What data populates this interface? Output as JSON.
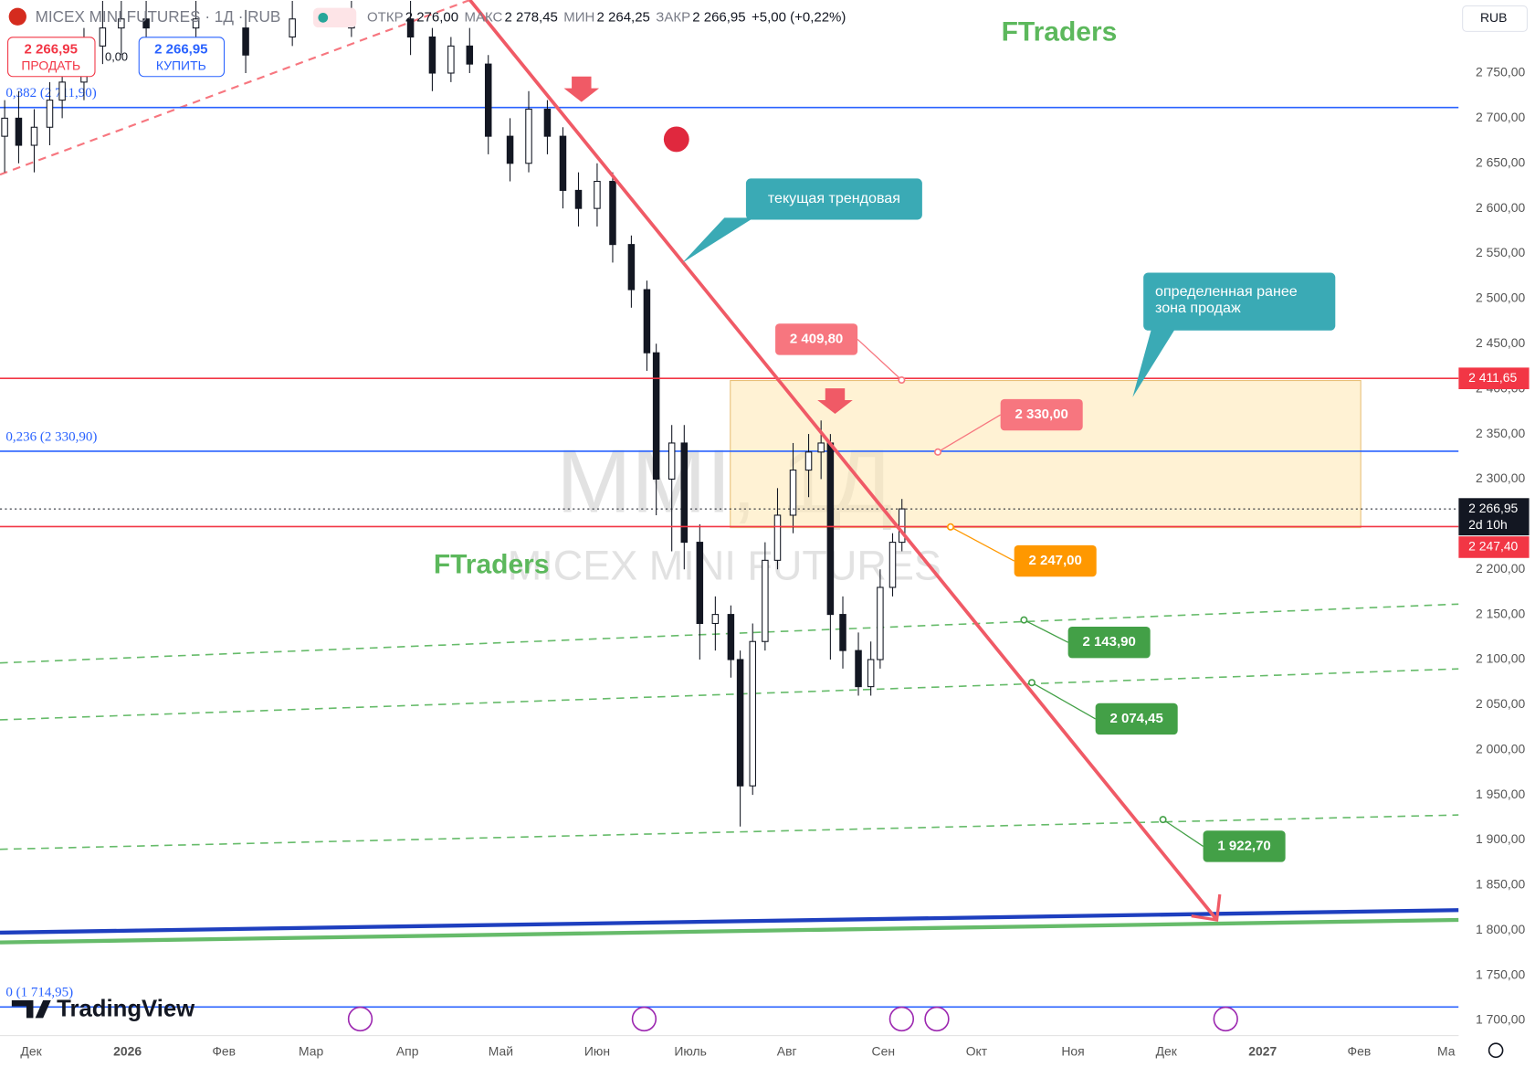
{
  "header": {
    "symbol": "MICEX MINI FUTURES · 1Д · RUB",
    "ohlc": [
      {
        "label": "ОТКР",
        "value": "2 276,00"
      },
      {
        "label": "МАКС",
        "value": "2 278,45"
      },
      {
        "label": "МИН",
        "value": "2 264,25"
      },
      {
        "label": "ЗАКР",
        "value": "2 266,95"
      }
    ],
    "change": "+5,00 (+0,22%)",
    "sell_price": "2 266,95",
    "sell": "ПРОДАТЬ",
    "spread": "0,00",
    "buy_price": "2 266,95",
    "buy": "КУПИТЬ",
    "currency": "RUB",
    "brand": "TradingView"
  },
  "chart_data": {
    "type": "candlestick",
    "watermark": "MMI, 1Д",
    "watermark_sub": "MICEX MINI FUTURES",
    "annotations": [
      "FTraders",
      "FTraders",
      "текущая трендовая",
      "определенная ранее\nзона продаж"
    ],
    "ylim": [
      1668,
      2831
    ],
    "yticks": [
      {
        "value": 1700,
        "label": "1 700,00"
      },
      {
        "value": 1750,
        "label": "1 750,00"
      },
      {
        "value": 1800,
        "label": "1 800,00"
      },
      {
        "value": 1850,
        "label": "1 850,00"
      },
      {
        "value": 1900,
        "label": "1 900,00"
      },
      {
        "value": 1950,
        "label": "1 950,00"
      },
      {
        "value": 2000,
        "label": "2 000,00"
      },
      {
        "value": 2050,
        "label": "2 050,00"
      },
      {
        "value": 2100,
        "label": "2 100,00"
      },
      {
        "value": 2150,
        "label": "2 150,00"
      },
      {
        "value": 2200,
        "label": "2 200,00"
      },
      {
        "value": 2250,
        "label": "2 250,00"
      },
      {
        "value": 2300,
        "label": "2 300,00"
      },
      {
        "value": 2350,
        "label": "2 350,00"
      },
      {
        "value": 2400,
        "label": "2 400,00"
      },
      {
        "value": 2450,
        "label": "2 450,00"
      },
      {
        "value": 2500,
        "label": "2 500,00"
      },
      {
        "value": 2550,
        "label": "2 550,00"
      },
      {
        "value": 2600,
        "label": "2 600,00"
      },
      {
        "value": 2650,
        "label": "2 650,00"
      },
      {
        "value": 2700,
        "label": "2 700,00"
      },
      {
        "value": 2750,
        "label": "2 750,00"
      }
    ],
    "xlim": [
      -10,
      459
    ],
    "xticks": [
      {
        "value": 0,
        "label": "Дек"
      },
      {
        "value": 31,
        "label": "2026"
      },
      {
        "value": 62,
        "label": "Фев"
      },
      {
        "value": 90,
        "label": "Мар"
      },
      {
        "value": 121,
        "label": "Апр"
      },
      {
        "value": 151,
        "label": "Май"
      },
      {
        "value": 182,
        "label": "Июн"
      },
      {
        "value": 212,
        "label": "Июль"
      },
      {
        "value": 243,
        "label": "Авг"
      },
      {
        "value": 274,
        "label": "Сен"
      },
      {
        "value": 304,
        "label": "Окт"
      },
      {
        "value": 335,
        "label": "Ноя"
      },
      {
        "value": 365,
        "label": "Дек"
      },
      {
        "value": 396,
        "label": "2027"
      },
      {
        "value": 427,
        "label": "Фев"
      },
      {
        "value": 455,
        "label": "Ма"
      }
    ],
    "levels": [
      {
        "label": "0,382 (2 711,90)",
        "value": 2711.9,
        "color": "#2962ff"
      },
      {
        "label": "0,236 (2 330,90)",
        "value": 2330.9,
        "color": "#2962ff"
      },
      {
        "label": "0 (1 714,95)",
        "value": 1714.95,
        "color": "#2962ff"
      }
    ],
    "price_lines": [
      {
        "value": 2411.65,
        "label": "2 411,65",
        "color": "#f23645"
      },
      {
        "value": 2247.4,
        "label": "2 247,40",
        "color": "#f23645"
      }
    ],
    "last_price": {
      "value": 2266.95,
      "label": "2 266,95",
      "countdown": "2d 10h"
    },
    "callouts": [
      {
        "value": 2409.8,
        "label": "2 409,80",
        "color": "#f7767f"
      },
      {
        "value": 2330,
        "label": "2 330,00",
        "color": "#f7767f"
      },
      {
        "value": 2247,
        "label": "2 247,00",
        "color": "#ff9800"
      },
      {
        "value": 2143.9,
        "label": "2 143,90",
        "color": "#43a047"
      },
      {
        "value": 2074.45,
        "label": "2 074,45",
        "color": "#43a047"
      },
      {
        "value": 1922.7,
        "label": "1 922,70",
        "color": "#43a047"
      }
    ],
    "candles": [
      [
        -8.5,
        2680,
        2720,
        2640,
        2700
      ],
      [
        -4,
        2700,
        2730,
        2650,
        2670
      ],
      [
        1,
        2670,
        2710,
        2640,
        2690
      ],
      [
        6,
        2690,
        2740,
        2670,
        2720
      ],
      [
        10,
        2720,
        2760,
        2700,
        2740
      ],
      [
        17,
        2740,
        2800,
        2720,
        2780
      ],
      [
        23,
        2780,
        2830,
        2760,
        2800
      ],
      [
        29,
        2800,
        2830,
        2770,
        2810
      ],
      [
        37,
        2810,
        2830,
        2780,
        2800
      ],
      [
        53,
        2800,
        2830,
        2790,
        2810
      ],
      [
        69,
        2800,
        2820,
        2750,
        2770
      ],
      [
        84,
        2790,
        2830,
        2780,
        2810
      ],
      [
        103,
        2800,
        2830,
        2790,
        2810
      ],
      [
        122,
        2810,
        2830,
        2770,
        2790
      ],
      [
        129,
        2790,
        2800,
        2730,
        2750
      ],
      [
        135,
        2750,
        2790,
        2740,
        2780
      ],
      [
        141,
        2780,
        2800,
        2750,
        2760
      ],
      [
        147,
        2760,
        2770,
        2660,
        2680
      ],
      [
        154,
        2680,
        2700,
        2630,
        2650
      ],
      [
        160,
        2650,
        2730,
        2640,
        2710
      ],
      [
        166,
        2710,
        2720,
        2660,
        2680
      ],
      [
        171,
        2680,
        2690,
        2600,
        2620
      ],
      [
        176,
        2620,
        2640,
        2580,
        2600
      ],
      [
        182,
        2600,
        2650,
        2580,
        2630
      ],
      [
        187,
        2630,
        2640,
        2540,
        2560
      ],
      [
        193,
        2560,
        2570,
        2490,
        2510
      ],
      [
        198,
        2510,
        2520,
        2420,
        2440
      ],
      [
        201,
        2440,
        2450,
        2260,
        2300
      ],
      [
        206,
        2300,
        2360,
        2220,
        2340
      ],
      [
        210,
        2340,
        2360,
        2200,
        2230
      ],
      [
        215,
        2230,
        2250,
        2100,
        2140
      ],
      [
        220,
        2140,
        2170,
        2110,
        2150
      ],
      [
        225,
        2150,
        2160,
        2080,
        2100
      ],
      [
        228,
        2100,
        2110,
        1915,
        1960
      ],
      [
        232,
        1960,
        2140,
        1950,
        2120
      ],
      [
        236,
        2120,
        2230,
        2110,
        2210
      ],
      [
        240,
        2210,
        2290,
        2200,
        2260
      ],
      [
        245,
        2260,
        2340,
        2240,
        2310
      ],
      [
        250,
        2310,
        2350,
        2280,
        2330
      ],
      [
        254,
        2330,
        2365,
        2300,
        2340
      ],
      [
        257,
        2340,
        2350,
        2100,
        2150
      ],
      [
        261,
        2150,
        2170,
        2090,
        2110
      ],
      [
        266,
        2110,
        2130,
        2060,
        2070
      ],
      [
        270,
        2070,
        2120,
        2060,
        2100
      ],
      [
        273,
        2100,
        2200,
        2090,
        2180
      ],
      [
        277,
        2180,
        2240,
        2170,
        2230
      ],
      [
        280,
        2230,
        2278,
        2220,
        2267
      ]
    ]
  }
}
